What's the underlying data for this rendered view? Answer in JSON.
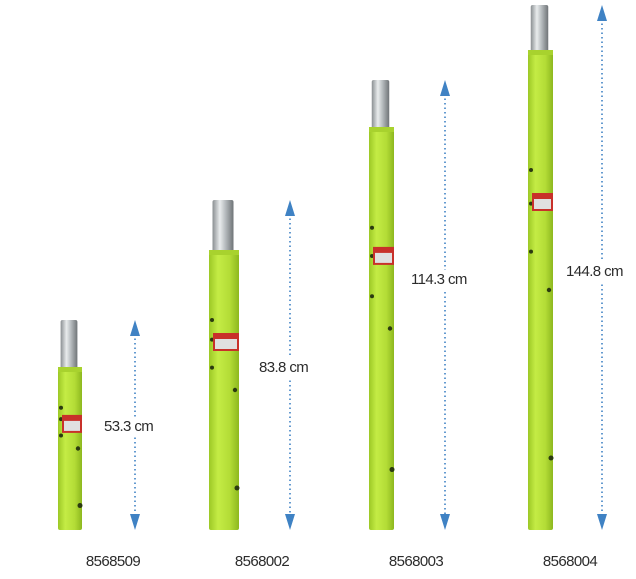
{
  "items": [
    {
      "part": "8568509",
      "length": "53.3 cm"
    },
    {
      "part": "8568002",
      "length": "83.8 cm"
    },
    {
      "part": "8568003",
      "length": "114.3 cm"
    },
    {
      "part": "8568004",
      "length": "144.8 cm"
    }
  ]
}
